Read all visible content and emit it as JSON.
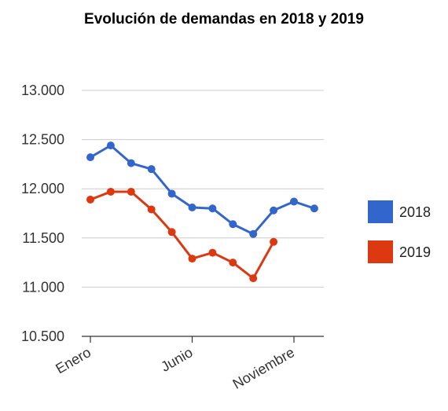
{
  "chart_data": {
    "type": "line",
    "title": "Evolución de demandas en 2018 y 2019",
    "xlabel": "",
    "ylabel": "",
    "x_tick_labels": [
      {
        "index": 0,
        "label": "Enero"
      },
      {
        "index": 5,
        "label": "Junio"
      },
      {
        "index": 10,
        "label": "Noviembre"
      }
    ],
    "ylim": [
      10500,
      13000
    ],
    "y_ticks": [
      {
        "value": 10500,
        "label": "10.500"
      },
      {
        "value": 11000,
        "label": "11.000"
      },
      {
        "value": 11500,
        "label": "11.500"
      },
      {
        "value": 12000,
        "label": "12.000"
      },
      {
        "value": 12500,
        "label": "12.500"
      },
      {
        "value": 13000,
        "label": "13.000"
      }
    ],
    "grid": true,
    "legend_position": "right",
    "series": [
      {
        "name": "2018",
        "color": "#3366cc",
        "values": [
          12320,
          12440,
          12260,
          12200,
          11950,
          11810,
          11800,
          11640,
          11540,
          11780,
          11870,
          11800
        ]
      },
      {
        "name": "2019",
        "color": "#dc3912",
        "values": [
          11890,
          11970,
          11970,
          11790,
          11560,
          11290,
          11350,
          11250,
          11090,
          11460
        ]
      }
    ]
  }
}
